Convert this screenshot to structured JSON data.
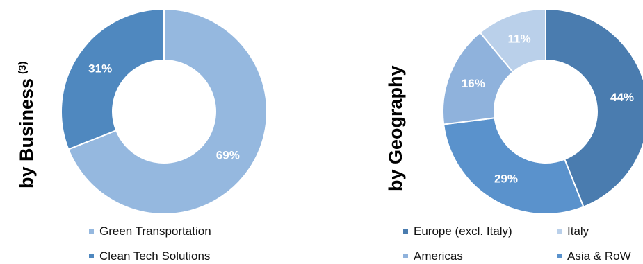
{
  "chart_data": [
    {
      "type": "pie",
      "title": "by Business",
      "title_sup": "(3)",
      "categories": [
        "Green Transportation",
        "Clean Tech Solutions"
      ],
      "values": [
        69,
        31
      ],
      "labels": [
        "69%",
        "31%"
      ],
      "colors": [
        "#95b8df",
        "#4f88bf"
      ],
      "legend": "bottom"
    },
    {
      "type": "pie",
      "title": "by Geography",
      "categories": [
        "Europe (excl. Italy)",
        "Asia & RoW",
        "Americas",
        "Italy"
      ],
      "values": [
        44,
        29,
        16,
        11
      ],
      "labels": [
        "44%",
        "29%",
        "16%",
        "11%"
      ],
      "colors": [
        "#4a7caf",
        "#5a92cc",
        "#8fb2dc",
        "#bad0ea"
      ],
      "legend_rows": [
        [
          "Europe (excl. Italy)",
          "Italy"
        ],
        [
          "Americas",
          "Asia & RoW"
        ]
      ],
      "legend": "bottom"
    }
  ]
}
